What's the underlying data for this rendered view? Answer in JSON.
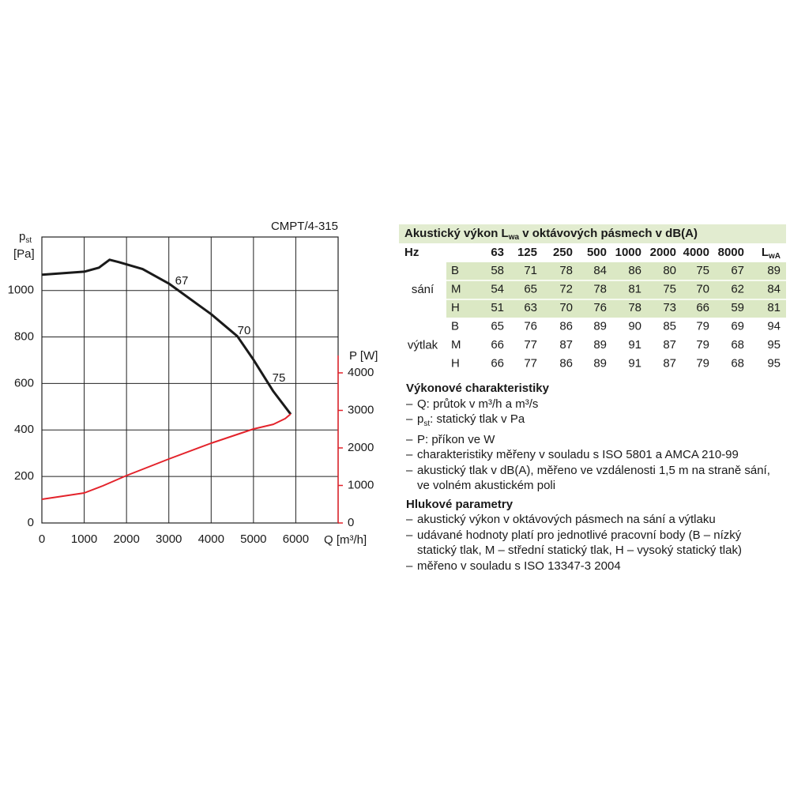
{
  "chart_data": {
    "type": "line",
    "title": "CMPT/4-315",
    "xlabel": "Q [m³/h]",
    "ylabel": {
      "symbol": "p",
      "sub": "st",
      "unit": "[Pa]"
    },
    "y2label": "P [W]",
    "xlim": [
      0,
      7000
    ],
    "xticks": [
      0,
      1000,
      2000,
      3000,
      4000,
      5000,
      6000
    ],
    "ylim": [
      0,
      1230
    ],
    "yticks": [
      0,
      200,
      400,
      600,
      800,
      1000
    ],
    "y2lim": [
      0,
      7620
    ],
    "y2ticks": [
      0,
      1000,
      2000,
      3000,
      4000
    ],
    "grid": true,
    "series": [
      {
        "color": "#1a1a1a",
        "x": [
          0,
          1000,
          1350,
          1600,
          1820,
          2380,
          3000,
          4000,
          4620,
          5000,
          5470,
          5880
        ],
        "values": [
          1068,
          1081,
          1098,
          1132,
          1122,
          1092,
          1030,
          898,
          803,
          702,
          566,
          468
        ]
      },
      {
        "color": "#e3232b",
        "axis": "y2",
        "x": [
          0,
          1000,
          1440,
          2000,
          3000,
          4000,
          5000,
          5470,
          5750,
          5880
        ],
        "values": [
          632,
          800,
          990,
          1263,
          1705,
          2126,
          2505,
          2630,
          2780,
          2905
        ]
      }
    ],
    "annotations": [
      "67",
      "70",
      "75"
    ]
  },
  "table": {
    "title": {
      "text": "Akustický výkon L",
      "sub": "wa",
      "tail": " v oktávových pásmech v dB(A)"
    },
    "header": [
      "Hz",
      63,
      125,
      250,
      500,
      1000,
      2000,
      4000,
      8000,
      {
        "text": "L",
        "sub": "wA"
      }
    ],
    "groups": [
      {
        "label": "sání",
        "rows": [
          {
            "point": "B",
            "values": [
              58,
              71,
              78,
              84,
              86,
              80,
              75,
              67,
              89
            ]
          },
          {
            "point": "M",
            "values": [
              54,
              65,
              72,
              78,
              81,
              75,
              70,
              62,
              84
            ]
          },
          {
            "point": "H",
            "values": [
              51,
              63,
              70,
              76,
              78,
              73,
              66,
              59,
              81
            ]
          }
        ]
      },
      {
        "label": "výtlak",
        "rows": [
          {
            "point": "B",
            "values": [
              65,
              76,
              86,
              89,
              90,
              85,
              79,
              69,
              94
            ]
          },
          {
            "point": "M",
            "values": [
              66,
              77,
              87,
              89,
              91,
              87,
              79,
              68,
              95
            ]
          },
          {
            "point": "H",
            "values": [
              66,
              77,
              86,
              89,
              91,
              87,
              79,
              68,
              95
            ]
          }
        ]
      }
    ]
  },
  "notes": [
    {
      "heading": "Výkonové charakteristiky",
      "items": [
        "Q: průtok v m³/h a m³/s",
        {
          "text": "p",
          "sub": "st",
          "tail": ": statický tlak v Pa"
        },
        "P: příkon ve W",
        "charakteristiky měřeny v souladu s ISO 5801 a AMCA 210-99",
        "akustický tlak v dB(A), měřeno ve vzdálenosti 1,5 m na straně sání, ve volném akustickém poli"
      ]
    },
    {
      "heading": "Hlukové parametry",
      "items": [
        "akustický výkon v oktávových pásmech na sání a výtlaku",
        "udávané hodnoty platí pro jednotlivé pracovní body (B – nízký statický tlak, M – střední statický tlak, H – vysoký statický tlak)",
        "měřeno v souladu s ISO 13347-3 2004"
      ]
    }
  ]
}
